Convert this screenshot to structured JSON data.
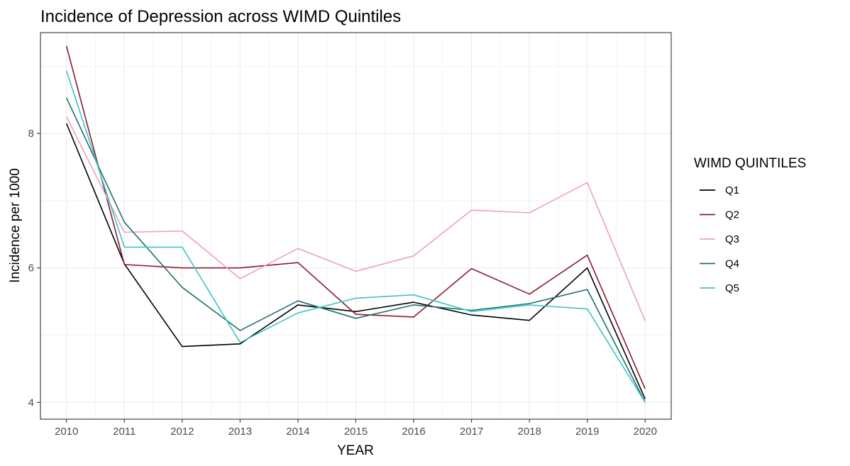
{
  "chart_data": {
    "type": "line",
    "title": "Incidence of Depression across WIMD Quintiles",
    "xlabel": "YEAR",
    "ylabel": "Incidence per 1000",
    "x": [
      2010,
      2011,
      2012,
      2013,
      2014,
      2015,
      2016,
      2017,
      2018,
      2019,
      2020
    ],
    "xlim": [
      2009.55,
      2020.45
    ],
    "ylim": [
      3.75,
      9.5
    ],
    "y_major_ticks": [
      4,
      6,
      8
    ],
    "y_minor_ticks": [
      5,
      7,
      9
    ],
    "grid": true,
    "legend": {
      "title": "WIMD   QUINTILES",
      "position": "right"
    },
    "series": [
      {
        "name": "Q1",
        "color": "#000000",
        "values": [
          8.15,
          6.06,
          4.83,
          4.87,
          5.45,
          5.35,
          5.49,
          5.3,
          5.22,
          6.0,
          4.05
        ]
      },
      {
        "name": "Q2",
        "color": "#8b1a32",
        "values": [
          9.3,
          6.05,
          6.0,
          6.0,
          6.08,
          5.31,
          5.27,
          5.99,
          5.61,
          6.19,
          4.2
        ]
      },
      {
        "name": "Q3",
        "color": "#f0a0b8",
        "values": [
          8.25,
          6.53,
          6.55,
          5.84,
          6.29,
          5.95,
          6.18,
          6.86,
          6.82,
          7.27,
          5.21
        ]
      },
      {
        "name": "Q4",
        "color": "#1f6e73",
        "values": [
          8.53,
          6.68,
          5.71,
          5.07,
          5.51,
          5.25,
          5.45,
          5.37,
          5.47,
          5.68,
          4.0
        ]
      },
      {
        "name": "Q5",
        "color": "#3fc4c4",
        "values": [
          8.93,
          6.31,
          6.31,
          4.89,
          5.33,
          5.55,
          5.6,
          5.35,
          5.45,
          5.39,
          4.0
        ]
      }
    ]
  }
}
